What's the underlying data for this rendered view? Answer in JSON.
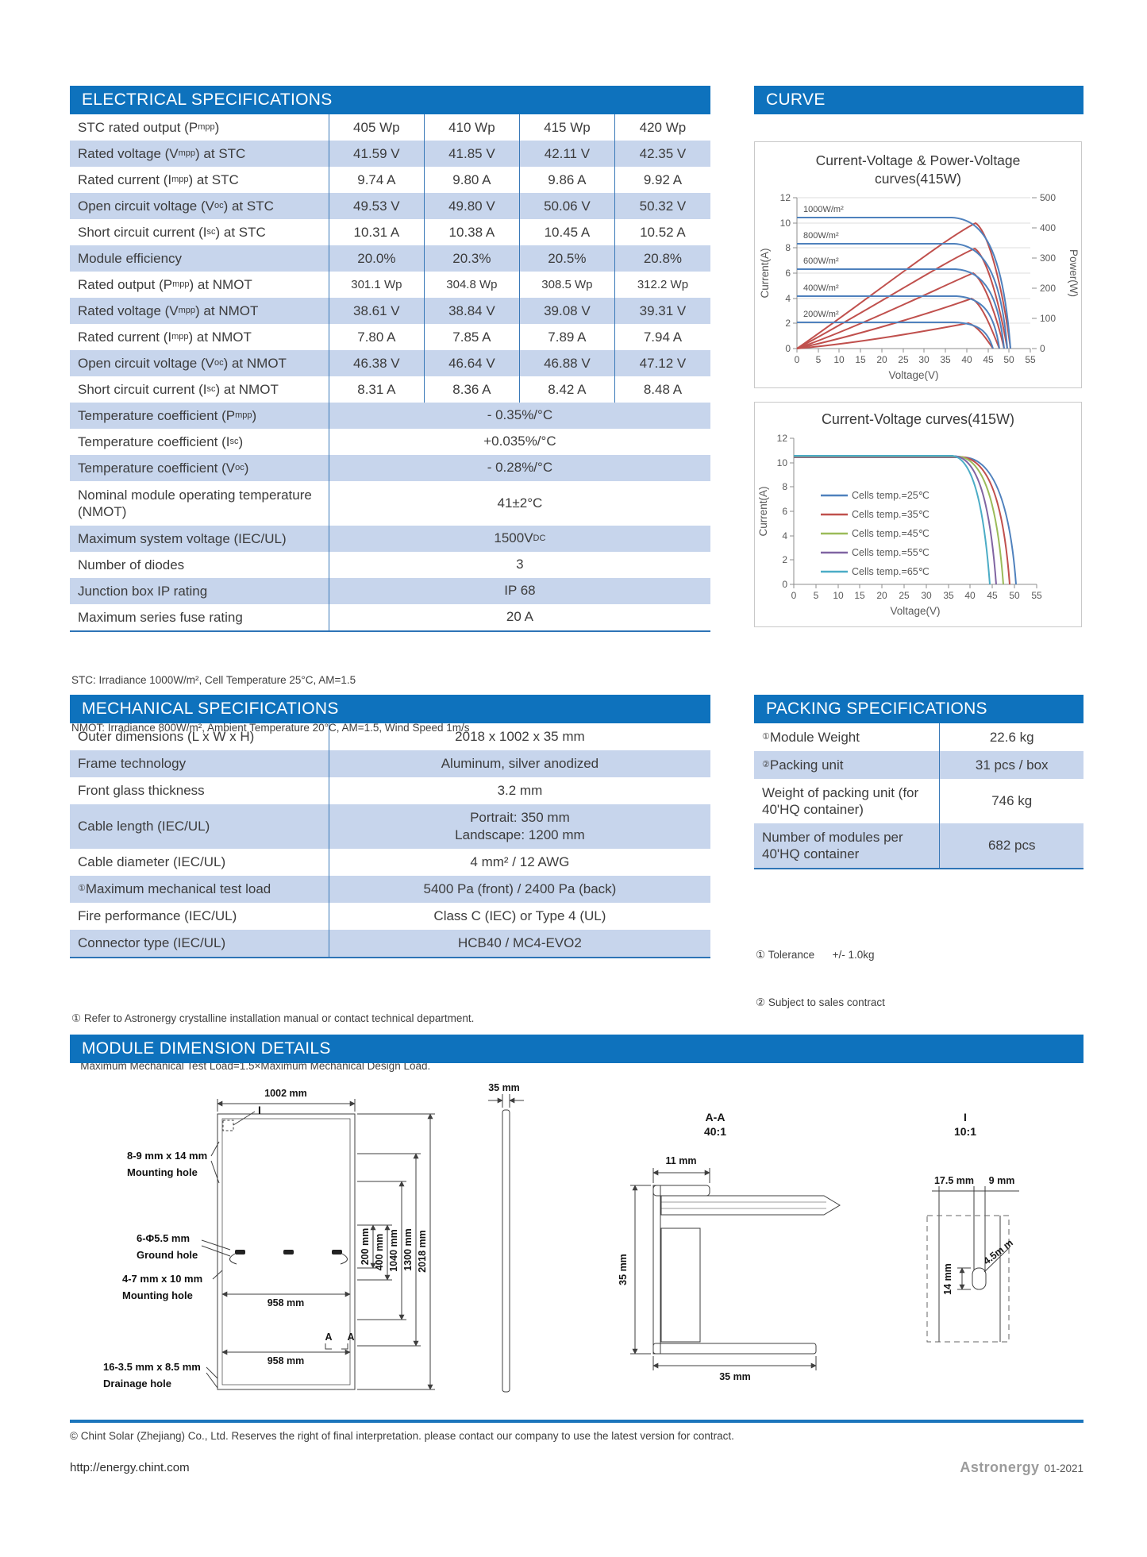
{
  "colors": {
    "header_blue": "#0e72bd",
    "row_alt_blue": "#c7d5ec",
    "table_line_blue": "#2e74b6",
    "curve_blue": "#4f81bd",
    "curve_red": "#c0504d",
    "curve_green": "#9bbb59",
    "curve_purple": "#8064a2",
    "curve_cyan": "#4bacc6"
  },
  "electrical": {
    "title": "ELECTRICAL SPECIFICATIONS",
    "rows": [
      {
        "label": "STC rated output (P<sub>mpp</sub>)",
        "values": [
          "405 Wp",
          "410 Wp",
          "415 Wp",
          "420 Wp"
        ]
      },
      {
        "label": "Rated voltage (V<sub>mpp</sub>) at STC",
        "values": [
          "41.59 V",
          "41.85 V",
          "42.11 V",
          "42.35 V"
        ]
      },
      {
        "label": "Rated current (I<sub>mpp</sub>) at STC",
        "values": [
          "9.74 A",
          "9.80 A",
          "9.86 A",
          "9.92 A"
        ]
      },
      {
        "label": "Open circuit voltage (V<sub>oc</sub>) at STC",
        "values": [
          "49.53 V",
          "49.80 V",
          "50.06 V",
          "50.32 V"
        ]
      },
      {
        "label": "Short circuit current (I<sub>sc</sub>) at STC",
        "values": [
          "10.31 A",
          "10.38 A",
          "10.45 A",
          "10.52 A"
        ]
      },
      {
        "label": "Module efficiency",
        "values": [
          "20.0%",
          "20.3%",
          "20.5%",
          "20.8%"
        ]
      },
      {
        "label": "Rated output (P<sub>mpp</sub>) at NMOT",
        "values": [
          "301.1 Wp",
          "304.8 Wp",
          "308.5 Wp",
          "312.2 Wp"
        ]
      },
      {
        "label": "Rated voltage (V<sub>mpp</sub>) at NMOT",
        "values": [
          "38.61 V",
          "38.84 V",
          "39.08 V",
          "39.31 V"
        ]
      },
      {
        "label": "Rated current (I<sub>mpp</sub>) at NMOT",
        "values": [
          "7.80 A",
          "7.85 A",
          "7.89 A",
          "7.94 A"
        ]
      },
      {
        "label": "Open circuit voltage (V<sub>oc</sub>) at NMOT",
        "values": [
          "46.38 V",
          "46.64 V",
          "46.88 V",
          "47.12 V"
        ]
      },
      {
        "label": "Short circuit current (I<sub>sc</sub>) at NMOT",
        "values": [
          "8.31 A",
          "8.36 A",
          "8.42 A",
          "8.48 A"
        ]
      },
      {
        "label": "Temperature coefficient (P<sub>mpp</sub>)",
        "span": "- 0.35%/°C"
      },
      {
        "label": "Temperature coefficient (I<sub>sc</sub>)",
        "span": "+0.035%/°C"
      },
      {
        "label": "Temperature coefficient (V<sub>oc</sub>)",
        "span": "- 0.28%/°C"
      },
      {
        "label": "Nominal module operating temperature (NMOT)",
        "span": "41±2°C"
      },
      {
        "label": "Maximum system voltage (IEC/UL)",
        "span": "1500V<sub>DC</sub>"
      },
      {
        "label": "Number of diodes",
        "span": "3"
      },
      {
        "label": "Junction box IP rating",
        "span": "IP 68"
      },
      {
        "label": "Maximum series fuse rating",
        "span": "20 A"
      }
    ],
    "footnotes": [
      "STC: Irradiance 1000W/m², Cell Temperature 25°C, AM=1.5",
      "NMOT: Irradiance 800W/m², Ambient Temperature 20°C, AM=1.5, Wind Speed 1m/s"
    ]
  },
  "curve": {
    "title": "CURVE"
  },
  "mechanical": {
    "title": "MECHANICAL SPECIFICATIONS",
    "rows": [
      {
        "label": "Outer dimensions (L  x  W  x  H)",
        "value": "2018 x 1002 x 35 mm"
      },
      {
        "label": "Frame technology",
        "value": "Aluminum, silver anodized"
      },
      {
        "label": "Front glass thickness",
        "value": "3.2 mm"
      },
      {
        "label": "Cable length (IEC/UL)",
        "value": "Portrait: 350 mm<br>Landscape: 1200 mm"
      },
      {
        "label": "Cable diameter (IEC/UL)",
        "value": "4 mm² / 12 AWG"
      },
      {
        "label": "<sup>①</sup> Maximum mechanical test load",
        "value": "5400 Pa (front) / 2400 Pa (back)"
      },
      {
        "label": "Fire performance (IEC/UL)",
        "value": "Class C (IEC) or Type 4 (UL)"
      },
      {
        "label": "Connector type (IEC/UL)",
        "value": "HCB40 / MC4-EVO2"
      }
    ],
    "footnotes": [
      "① Refer to Astronergy crystalline installation manual or contact technical department.",
      "   Maximum Mechanical Test Load=1.5×Maximum Mechanical Design Load."
    ]
  },
  "packing": {
    "title": "PACKING SPECIFICATIONS",
    "rows": [
      {
        "label": "<sup>①</sup>Module Weight",
        "value": "22.6 kg"
      },
      {
        "label": "<sup>②</sup>Packing unit",
        "value": "31 pcs / box"
      },
      {
        "label": "Weight of packing unit (for 40'HQ container)",
        "value": "746 kg"
      },
      {
        "label": "Number of modules per 40'HQ container",
        "value": "682 pcs"
      }
    ],
    "footnotes": [
      "① Tolerance      +/- 1.0kg",
      "② Subject to sales contract"
    ]
  },
  "dimensions": {
    "title": "MODULE DIMENSION DETAILS",
    "front": {
      "width_label": "1002 mm",
      "inner_width_label": "958 mm",
      "hole1_line1": "8-9 mm x 14 mm",
      "hole1_line2": "Mounting hole",
      "hole2_line1": "6-Φ5.5 mm",
      "hole2_line2": "Ground hole",
      "hole3_line1": "4-7 mm x 10 mm",
      "hole3_line2": "Mounting hole",
      "hole4_line1": "16-3.5 mm x 8.5 mm",
      "hole4_line2": "Drainage hole",
      "v200": "200 mm",
      "v400": "400 mm",
      "v1040": "1040 mm",
      "v1300": "1300 mm",
      "v2018": "2018 mm",
      "section_mark": "A",
      "detail_mark": "I"
    },
    "side": {
      "thickness_label": "35 mm"
    },
    "section_aa": {
      "label": "A-A",
      "scale": "40:1",
      "top_width": "11 mm",
      "height": "35 mm",
      "bottom_width": "35 mm"
    },
    "detail_i": {
      "label": "I",
      "scale": "10:1",
      "offset": "17.5 mm",
      "width": "9 mm",
      "height": "14 mm",
      "slot": "4.5m m"
    }
  },
  "chart_data": [
    {
      "type": "line",
      "title": "Current-Voltage & Power-Voltage curves(415W)",
      "xlabel": "Voltage(V)",
      "ylabel_left": "Current(A)",
      "ylabel_right": "Power(W)",
      "xlim": [
        0,
        55
      ],
      "ylim_left": [
        0,
        12
      ],
      "ylim_right": [
        0,
        500
      ],
      "grid": true,
      "xticks": [
        "0",
        "5",
        "10",
        "15",
        "20",
        "25",
        "30",
        "35",
        "40",
        "45",
        "50",
        "55"
      ],
      "yticks_left": [
        "12",
        "10",
        "8",
        "6",
        "4",
        "2",
        "0"
      ],
      "yticks_right": [
        "500",
        "400",
        "300",
        "200",
        "100",
        "0"
      ],
      "iv_color": "#4f81bd",
      "pv_color": "#c0504d",
      "iv_series": [
        {
          "name": "1000W/m²",
          "isc_a": 10.45,
          "voc_v": 50.3
        },
        {
          "name": "800W/m²",
          "isc_a": 8.36,
          "voc_v": 49.6
        },
        {
          "name": "600W/m²",
          "isc_a": 6.3,
          "voc_v": 48.8
        },
        {
          "name": "400W/m²",
          "isc_a": 4.2,
          "voc_v": 47.7
        },
        {
          "name": "200W/m²",
          "isc_a": 2.1,
          "voc_v": 46.2
        }
      ],
      "pv_series": [
        {
          "name": "1000W/m²",
          "pmax_w": 415,
          "vmpp_v": 42.1
        },
        {
          "name": "800W/m²",
          "pmax_w": 333,
          "vmpp_v": 42.0
        },
        {
          "name": "600W/m²",
          "pmax_w": 249,
          "vmpp_v": 41.8
        },
        {
          "name": "400W/m²",
          "pmax_w": 166,
          "vmpp_v": 41.5
        },
        {
          "name": "200W/m²",
          "pmax_w": 83,
          "vmpp_v": 40.9
        }
      ]
    },
    {
      "type": "line",
      "title": "Current-Voltage curves(415W)",
      "xlabel": "Voltage(V)",
      "ylabel": "Current(A)",
      "xlim": [
        0,
        55
      ],
      "ylim": [
        0,
        12
      ],
      "grid": false,
      "legend_position": "left-middle",
      "xticks": [
        "0",
        "5",
        "10",
        "15",
        "20",
        "25",
        "30",
        "35",
        "40",
        "45",
        "50",
        "55"
      ],
      "yticks": [
        "12",
        "10",
        "8",
        "6",
        "4",
        "2",
        "0"
      ],
      "series": [
        {
          "name": "Cells temp.=25℃",
          "color": "#4f81bd",
          "isc_a": 10.45,
          "voc_v": 50.3
        },
        {
          "name": "Cells temp.=35℃",
          "color": "#c0504d",
          "isc_a": 10.5,
          "voc_v": 48.9
        },
        {
          "name": "Cells temp.=45℃",
          "color": "#9bbb59",
          "isc_a": 10.55,
          "voc_v": 47.4
        },
        {
          "name": "Cells temp.=55℃",
          "color": "#8064a2",
          "isc_a": 10.6,
          "voc_v": 45.9
        },
        {
          "name": "Cells temp.=65℃",
          "color": "#4bacc6",
          "isc_a": 10.65,
          "voc_v": 44.4
        }
      ]
    }
  ],
  "footer": {
    "copyright": "© Chint Solar (Zhejiang) Co., Ltd. Reserves the right of final interpretation. please contact our company to use the latest version for contract.",
    "website": "http://energy.chint.com",
    "brand": "Astronergy",
    "issue": "01-2021"
  }
}
